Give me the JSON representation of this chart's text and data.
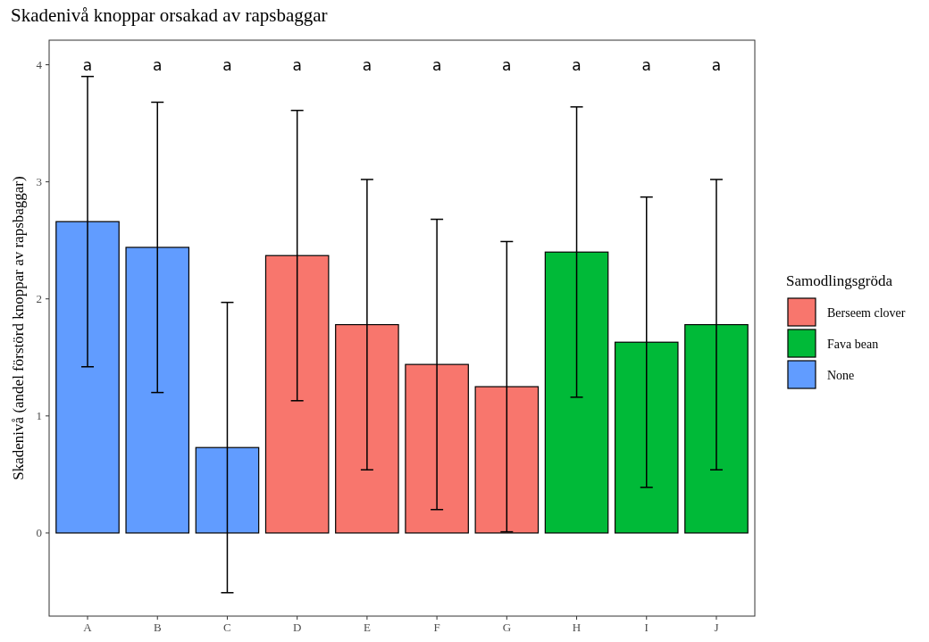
{
  "chart_data": {
    "type": "bar",
    "title": "Skadenivå knoppar orsakad av rapsbaggar",
    "ylabel": "Skadenivå (andel förstörd knoppar av rapsbaggar)",
    "legend_title": "Samodlingsgröda",
    "categories": [
      "A",
      "B",
      "C",
      "D",
      "E",
      "F",
      "G",
      "H",
      "I",
      "J"
    ],
    "series": [
      {
        "name": "Berseem clover",
        "color": "#f8766d",
        "values": [
          null,
          null,
          null,
          2.37,
          1.78,
          1.44,
          1.25,
          null,
          null,
          null
        ],
        "errors": [
          null,
          null,
          null,
          1.24,
          1.24,
          1.24,
          1.24,
          null,
          null,
          null
        ]
      },
      {
        "name": "Fava bean",
        "color": "#00ba38",
        "values": [
          null,
          null,
          null,
          null,
          null,
          null,
          null,
          2.4,
          1.63,
          1.78
        ],
        "errors": [
          null,
          null,
          null,
          null,
          null,
          null,
          null,
          1.24,
          1.24,
          1.24
        ]
      },
      {
        "name": "None",
        "color": "#619cff",
        "values": [
          2.66,
          2.44,
          0.73,
          null,
          null,
          null,
          null,
          null,
          null,
          null
        ],
        "errors": [
          1.24,
          1.24,
          1.24,
          null,
          null,
          null,
          null,
          null,
          null,
          null
        ]
      }
    ],
    "annotations": [
      "a",
      "a",
      "a",
      "a",
      "a",
      "a",
      "a",
      "a",
      "a",
      "a"
    ],
    "ylim": [
      -0.71,
      4.21
    ],
    "yticks": [
      0,
      1,
      2,
      3,
      4
    ],
    "grid": false,
    "legend": "right"
  }
}
